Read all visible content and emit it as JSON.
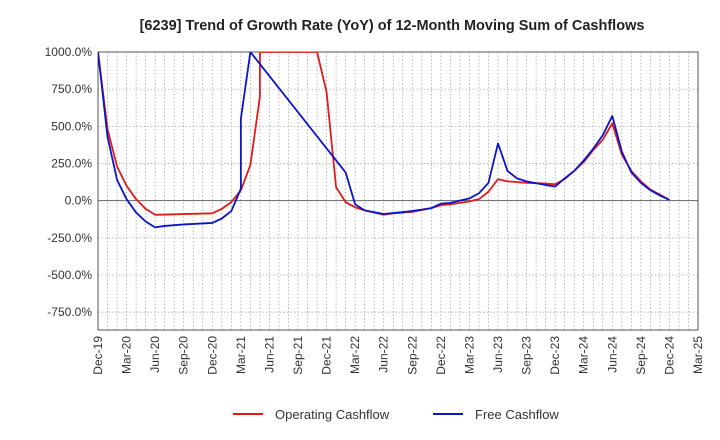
{
  "chart_data": {
    "type": "line",
    "title": "[6239]  Trend of Growth Rate (YoY) of 12-Month Moving Sum of Cashflows",
    "xlabel": "",
    "ylabel": "",
    "ylim": [
      -870,
      1000
    ],
    "y_ticks": [
      1000,
      750,
      500,
      250,
      0,
      -250,
      -500,
      -750
    ],
    "y_tick_labels": [
      "1000.0%",
      "750.0%",
      "500.0%",
      "250.0%",
      "0.0%",
      "-250.0%",
      "-500.0%",
      "-750.0%"
    ],
    "x_tick_labels": [
      "Dec-19",
      "Mar-20",
      "Jun-20",
      "Sep-20",
      "Dec-20",
      "Mar-21",
      "Jun-21",
      "Sep-21",
      "Dec-21",
      "Mar-22",
      "Jun-22",
      "Sep-22",
      "Dec-22",
      "Mar-23",
      "Jun-23",
      "Sep-23",
      "Dec-23",
      "Mar-24",
      "Jun-24",
      "Sep-24",
      "Dec-24",
      "Mar-25"
    ],
    "grid": true,
    "legend_position": "bottom",
    "series": [
      {
        "name": "Operating Cashflow",
        "color": "#e31a1c",
        "points": [
          [
            "Dec-19",
            1000
          ],
          [
            "Jan-20",
            480
          ],
          [
            "Feb-20",
            230
          ],
          [
            "Mar-20",
            100
          ],
          [
            "Apr-20",
            10
          ],
          [
            "May-20",
            -55
          ],
          [
            "Jun-20",
            -95
          ],
          [
            "Sep-20",
            -90
          ],
          [
            "Dec-20",
            -85
          ],
          [
            "Jan-21",
            -55
          ],
          [
            "Feb-21",
            -10
          ],
          [
            "Mar-21",
            70
          ],
          [
            "Apr-21",
            240
          ],
          [
            "May-21",
            700
          ],
          [
            "May-21",
            1000
          ],
          [
            "Nov-21",
            1000
          ],
          [
            "Dec-21",
            730
          ],
          [
            "Jan-22",
            90
          ],
          [
            "Feb-22",
            -10
          ],
          [
            "Mar-22",
            -45
          ],
          [
            "Apr-22",
            -65
          ],
          [
            "May-22",
            -80
          ],
          [
            "Jun-22",
            -95
          ],
          [
            "Jul-22",
            -85
          ],
          [
            "Sep-22",
            -75
          ],
          [
            "Nov-22",
            -50
          ],
          [
            "Dec-22",
            -30
          ],
          [
            "Jan-23",
            -25
          ],
          [
            "Feb-23",
            -15
          ],
          [
            "Mar-23",
            -5
          ],
          [
            "Apr-23",
            10
          ],
          [
            "May-23",
            60
          ],
          [
            "Jun-23",
            145
          ],
          [
            "Jul-23",
            130
          ],
          [
            "Sep-23",
            120
          ],
          [
            "Nov-23",
            115
          ],
          [
            "Dec-23",
            110
          ],
          [
            "Jan-24",
            145
          ],
          [
            "Feb-24",
            200
          ],
          [
            "Mar-24",
            260
          ],
          [
            "Apr-24",
            340
          ],
          [
            "May-24",
            410
          ],
          [
            "Jun-24",
            520
          ],
          [
            "Jul-24",
            310
          ],
          [
            "Aug-24",
            200
          ],
          [
            "Sep-24",
            130
          ],
          [
            "Oct-24",
            75
          ],
          [
            "Nov-24",
            40
          ],
          [
            "Dec-24",
            5
          ]
        ]
      },
      {
        "name": "Free Cashflow",
        "color": "#0a14c8",
        "points": [
          [
            "Dec-19",
            1000
          ],
          [
            "Jan-20",
            430
          ],
          [
            "Feb-20",
            140
          ],
          [
            "Mar-20",
            10
          ],
          [
            "Apr-20",
            -80
          ],
          [
            "May-20",
            -140
          ],
          [
            "Jun-20",
            -180
          ],
          [
            "Jul-20",
            -170
          ],
          [
            "Sep-20",
            -160
          ],
          [
            "Dec-20",
            -150
          ],
          [
            "Jan-21",
            -120
          ],
          [
            "Feb-21",
            -70
          ],
          [
            "Mar-21",
            80
          ],
          [
            "Mar-21",
            550
          ],
          [
            "Apr-21",
            1000
          ],
          [
            "Feb-22",
            190
          ],
          [
            "Mar-22",
            -25
          ],
          [
            "Apr-22",
            -65
          ],
          [
            "Jun-22",
            -90
          ],
          [
            "Sep-22",
            -70
          ],
          [
            "Nov-22",
            -50
          ],
          [
            "Dec-22",
            -20
          ],
          [
            "Jan-23",
            -15
          ],
          [
            "Feb-23",
            0
          ],
          [
            "Mar-23",
            15
          ],
          [
            "Apr-23",
            50
          ],
          [
            "May-23",
            120
          ],
          [
            "Jun-23",
            385
          ],
          [
            "Jul-23",
            200
          ],
          [
            "Aug-23",
            150
          ],
          [
            "Sep-23",
            130
          ],
          [
            "Nov-23",
            105
          ],
          [
            "Dec-23",
            95
          ],
          [
            "Jan-24",
            150
          ],
          [
            "Feb-24",
            200
          ],
          [
            "Mar-24",
            270
          ],
          [
            "Apr-24",
            350
          ],
          [
            "May-24",
            440
          ],
          [
            "Jun-24",
            570
          ],
          [
            "Jul-24",
            330
          ],
          [
            "Aug-24",
            190
          ],
          [
            "Sep-24",
            120
          ],
          [
            "Oct-24",
            70
          ],
          [
            "Nov-24",
            35
          ],
          [
            "Dec-24",
            5
          ]
        ]
      }
    ]
  }
}
